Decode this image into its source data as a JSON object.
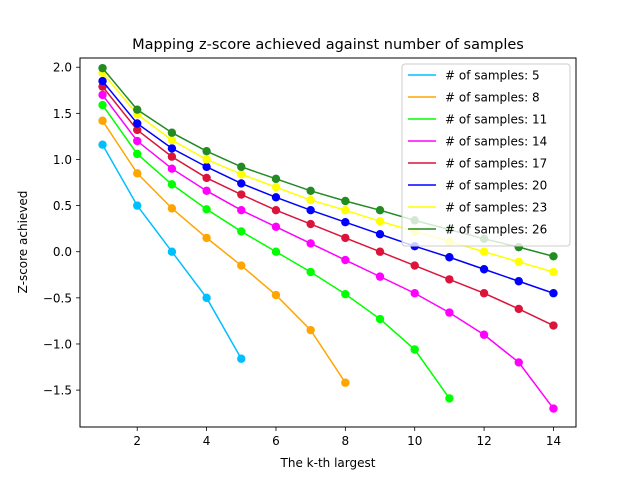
{
  "chart_data": {
    "type": "line",
    "title": "Mapping z-score achieved against number of samples",
    "xlabel": "The k-th largest",
    "ylabel": "Z-score achieved",
    "xlim": [
      0.35,
      14.65
    ],
    "ylim": [
      -1.9,
      2.1
    ],
    "xticks": [
      2,
      4,
      6,
      8,
      10,
      12,
      14
    ],
    "yticks": [
      -1.5,
      -1.0,
      -0.5,
      0.0,
      0.5,
      1.0,
      1.5,
      2.0
    ],
    "ytick_labels": [
      "−1.5",
      "−1.0",
      "−0.5",
      "0.0",
      "0.5",
      "1.0",
      "1.5",
      "2.0"
    ],
    "grid": false,
    "legend_position": "upper right",
    "markers": true,
    "series": [
      {
        "name": "# of samples: 5",
        "color": "#00bfff",
        "x": [
          1,
          2,
          3,
          4,
          5
        ],
        "y": [
          1.16,
          0.5,
          0.0,
          -0.5,
          -1.16
        ]
      },
      {
        "name": "# of samples: 8",
        "color": "#ffa500",
        "x": [
          1,
          2,
          3,
          4,
          5,
          6,
          7,
          8
        ],
        "y": [
          1.42,
          0.85,
          0.47,
          0.15,
          -0.15,
          -0.47,
          -0.85,
          -1.42
        ]
      },
      {
        "name": "# of samples: 11",
        "color": "#00ff00",
        "x": [
          1,
          2,
          3,
          4,
          5,
          6,
          7,
          8,
          9,
          10,
          11
        ],
        "y": [
          1.59,
          1.06,
          0.73,
          0.46,
          0.22,
          0.0,
          -0.22,
          -0.46,
          -0.73,
          -1.06,
          -1.59
        ]
      },
      {
        "name": "# of samples: 14",
        "color": "#ff00ff",
        "x": [
          1,
          2,
          3,
          4,
          5,
          6,
          7,
          8,
          9,
          10,
          11,
          12,
          13,
          14
        ],
        "y": [
          1.7,
          1.2,
          0.9,
          0.66,
          0.45,
          0.27,
          0.09,
          -0.09,
          -0.27,
          -0.45,
          -0.66,
          -0.9,
          -1.2,
          -1.7
        ]
      },
      {
        "name": "# of samples: 17",
        "color": "#dc143c",
        "x": [
          1,
          2,
          3,
          4,
          5,
          6,
          7,
          8,
          9,
          10,
          11,
          12,
          13,
          14
        ],
        "y": [
          1.79,
          1.32,
          1.03,
          0.8,
          0.62,
          0.45,
          0.3,
          0.15,
          0.0,
          -0.15,
          -0.3,
          -0.45,
          -0.62,
          -0.8
        ]
      },
      {
        "name": "# of samples: 20",
        "color": "#0000ff",
        "x": [
          1,
          2,
          3,
          4,
          5,
          6,
          7,
          8,
          9,
          10,
          11,
          12,
          13,
          14
        ],
        "y": [
          1.85,
          1.39,
          1.12,
          0.92,
          0.74,
          0.59,
          0.45,
          0.32,
          0.19,
          0.06,
          -0.06,
          -0.19,
          -0.32,
          -0.45
        ]
      },
      {
        "name": "# of samples: 23",
        "color": "#ffff00",
        "x": [
          1,
          2,
          3,
          4,
          5,
          6,
          7,
          8,
          9,
          10,
          11,
          12,
          13,
          14
        ],
        "y": [
          1.94,
          1.49,
          1.21,
          1.0,
          0.84,
          0.7,
          0.56,
          0.45,
          0.33,
          0.22,
          0.11,
          0.0,
          -0.11,
          -0.22
        ]
      },
      {
        "name": "# of samples: 26",
        "color": "#228b22",
        "x": [
          1,
          2,
          3,
          4,
          5,
          6,
          7,
          8,
          9,
          10,
          11,
          12,
          13,
          14
        ],
        "y": [
          1.99,
          1.54,
          1.29,
          1.09,
          0.92,
          0.79,
          0.66,
          0.55,
          0.45,
          0.34,
          0.24,
          0.14,
          0.05,
          -0.05
        ]
      }
    ]
  }
}
